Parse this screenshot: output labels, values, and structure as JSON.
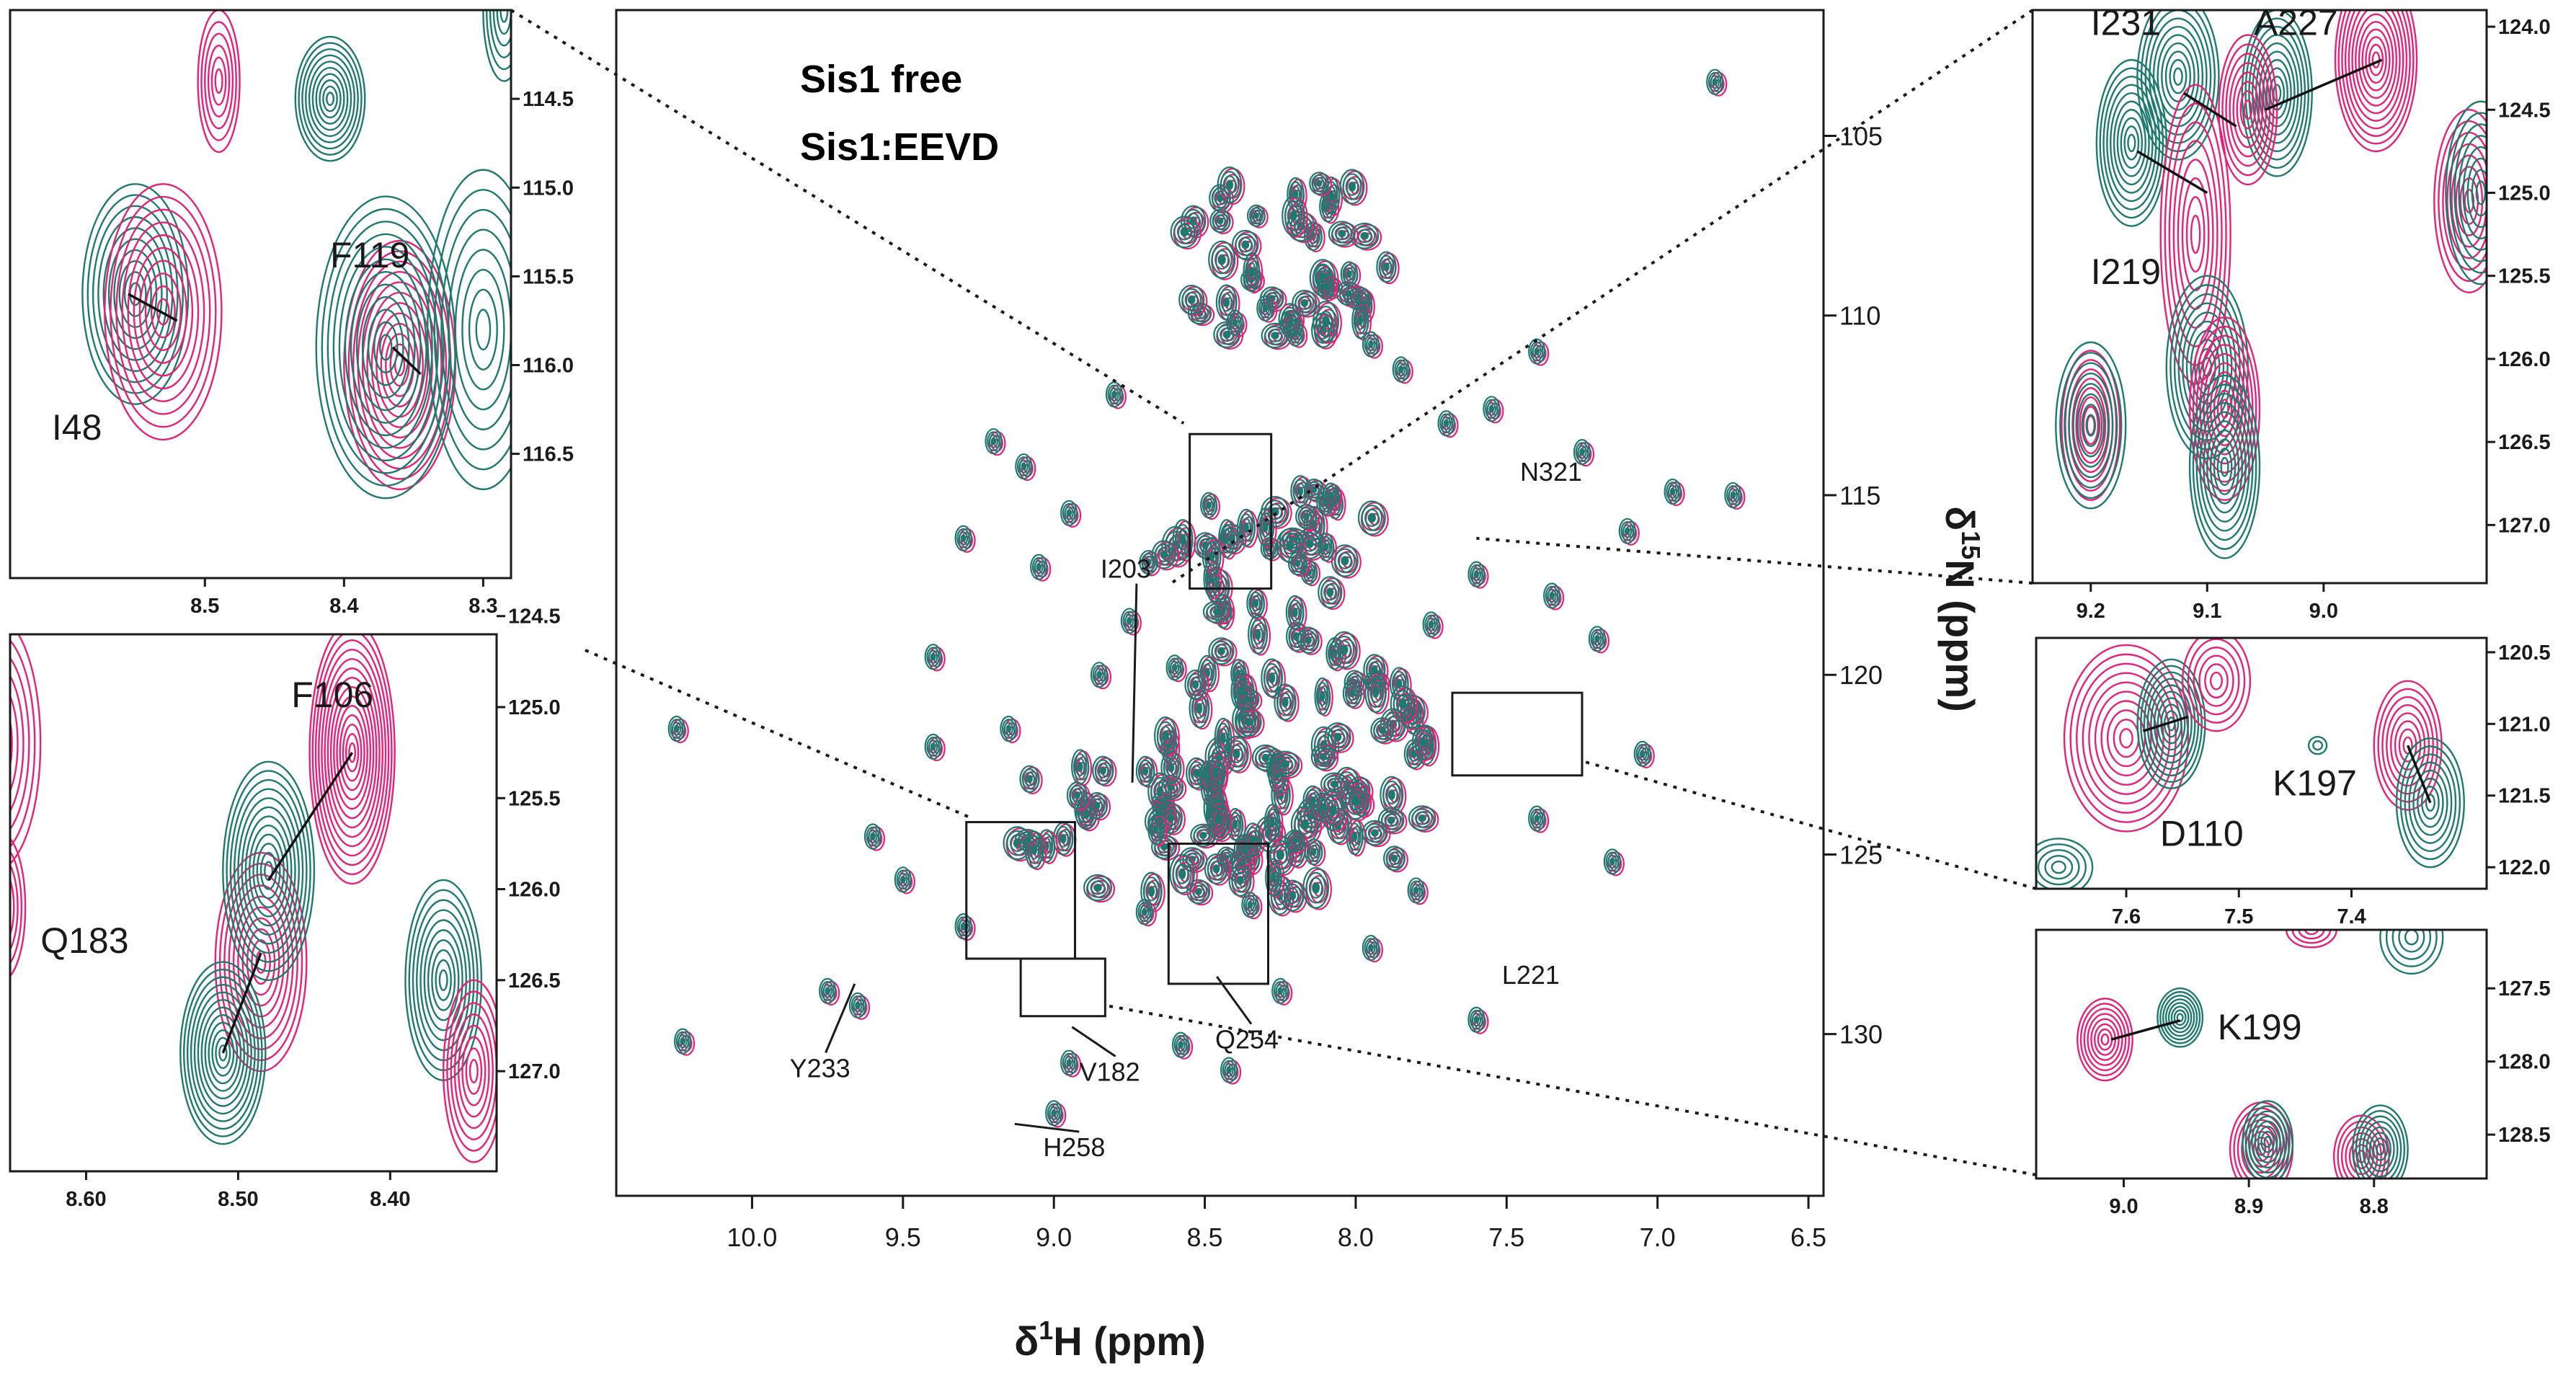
{
  "legend": {
    "free": "Sis1 free",
    "bound": "Sis1:EEVD"
  },
  "colors": {
    "free": "#e6217a",
    "bound": "#1e7a70"
  },
  "axes": {
    "xlabel_main": "H (ppm)",
    "x_delta": "δ",
    "x_sup": "1",
    "ylabel_main": "N (ppm)",
    "y_delta": "δ",
    "y_sup": "15"
  },
  "chart_data": [
    {
      "name": "main-spectrum",
      "type": "scatter",
      "x_axis": {
        "label": "δ1H (ppm)",
        "range": [
          10.45,
          6.45
        ],
        "ticks": [
          "10.0",
          "9.5",
          "9.0",
          "8.5",
          "8.0",
          "7.5",
          "7.0",
          "6.5"
        ],
        "tick_values": [
          10.0,
          9.5,
          9.0,
          8.5,
          8.0,
          7.5,
          7.0,
          6.5
        ]
      },
      "y_axis": {
        "label": "δ15N (ppm)",
        "range": [
          101.5,
          134.5
        ],
        "ticks": [
          "105",
          "110",
          "115",
          "120",
          "125",
          "130"
        ],
        "tick_values": [
          105,
          110,
          115,
          120,
          125,
          130
        ]
      },
      "labels": [
        {
          "text": "N321",
          "x": 7.36,
          "y": 114.6,
          "ax": 7.36,
          "ay": 114.6,
          "line": false
        },
        {
          "text": "I203",
          "x": 8.75,
          "y": 117.3,
          "ax": 8.74,
          "ay": 123.0,
          "line": true
        },
        {
          "text": "L221",
          "x": 7.42,
          "y": 128.6,
          "ax": 7.42,
          "ay": 128.6,
          "line": false
        },
        {
          "text": "Y233",
          "x": 9.78,
          "y": 131.2,
          "ax": 9.66,
          "ay": 128.6,
          "line": true
        },
        {
          "text": "V182",
          "x": 8.82,
          "y": 131.3,
          "ax": 8.94,
          "ay": 129.8,
          "line": true
        },
        {
          "text": "Q254",
          "x": 8.37,
          "y": 130.4,
          "ax": 8.46,
          "ay": 128.4,
          "line": true
        },
        {
          "text": "H258",
          "x": 8.94,
          "y": 133.4,
          "ax": 9.13,
          "ay": 132.5,
          "line": true
        }
      ],
      "boxes": [
        {
          "x1": 8.55,
          "x2": 8.28,
          "y1": 113.3,
          "y2": 117.6
        },
        {
          "x1": 7.68,
          "x2": 7.25,
          "y1": 120.5,
          "y2": 122.8
        },
        {
          "x1": 9.29,
          "x2": 8.93,
          "y1": 124.1,
          "y2": 127.9
        },
        {
          "x1": 8.62,
          "x2": 8.29,
          "y1": 124.7,
          "y2": 128.6
        },
        {
          "x1": 9.11,
          "x2": 8.83,
          "y1": 127.9,
          "y2": 129.5
        }
      ],
      "peaks": [
        [
          6.81,
          103.5
        ],
        [
          10.25,
          121.5
        ],
        [
          10.23,
          130.2
        ],
        [
          9.75,
          128.8
        ],
        [
          9.65,
          129.2
        ],
        [
          9.6,
          124.5
        ],
        [
          9.4,
          119.5
        ],
        [
          9.2,
          113.5
        ],
        [
          9.1,
          114.2
        ],
        [
          9.05,
          117.0
        ],
        [
          8.95,
          115.5
        ],
        [
          8.85,
          120.0
        ],
        [
          8.75,
          118.5
        ],
        [
          8.6,
          119.8
        ],
        [
          8.4,
          110.2
        ],
        [
          8.3,
          109.8
        ],
        [
          8.2,
          110.5
        ],
        [
          8.1,
          109.2
        ],
        [
          7.95,
          110.8
        ],
        [
          7.85,
          111.5
        ],
        [
          7.7,
          113.0
        ],
        [
          7.55,
          112.6
        ],
        [
          7.4,
          111.0
        ],
        [
          7.25,
          113.8
        ],
        [
          7.1,
          116.0
        ],
        [
          6.95,
          114.9
        ],
        [
          6.75,
          115.0
        ],
        [
          7.6,
          117.2
        ],
        [
          7.35,
          117.8
        ],
        [
          7.2,
          119.0
        ],
        [
          7.05,
          122.2
        ],
        [
          7.4,
          124.0
        ],
        [
          7.15,
          125.2
        ],
        [
          7.8,
          126.0
        ],
        [
          7.95,
          127.6
        ],
        [
          8.7,
          126.6
        ],
        [
          9.3,
          127.0
        ],
        [
          8.95,
          130.8
        ],
        [
          9.0,
          132.2
        ],
        [
          9.5,
          125.7
        ],
        [
          9.4,
          122.0
        ],
        [
          9.15,
          121.5
        ],
        [
          8.58,
          130.3
        ],
        [
          8.42,
          131.0
        ],
        [
          7.75,
          118.6
        ],
        [
          8.8,
          112.2
        ],
        [
          9.3,
          116.2
        ],
        [
          7.6,
          129.6
        ],
        [
          8.25,
          128.8
        ],
        [
          8.35,
          126.4
        ]
      ],
      "clusters": [
        {
          "x": 8.22,
          "y": 122.5,
          "rx": 0.48,
          "ry": 3.8,
          "n": 90
        },
        {
          "x": 8.22,
          "y": 108.5,
          "rx": 0.38,
          "ry": 2.5,
          "n": 40
        },
        {
          "x": 8.3,
          "y": 116.5,
          "rx": 0.4,
          "ry": 2.0,
          "n": 35
        },
        {
          "x": 8.7,
          "y": 124.0,
          "rx": 0.45,
          "ry": 2.5,
          "n": 30
        }
      ]
    },
    {
      "name": "inset-top-left",
      "type": "scatter",
      "x_axis": {
        "range": [
          8.64,
          8.28
        ],
        "ticks": [
          "8.5",
          "8.4",
          "8.3"
        ],
        "tick_values": [
          8.5,
          8.4,
          8.3
        ]
      },
      "y_axis": {
        "range": [
          114.0,
          117.2
        ],
        "ticks": [
          "114.5",
          "115.0",
          "115.5",
          "116.0",
          "116.5"
        ],
        "tick_values": [
          114.5,
          115.0,
          115.5,
          116.0,
          116.5
        ]
      },
      "peaks": [
        {
          "x": 8.55,
          "y": 115.6,
          "color": "bound",
          "n": 10,
          "rx": 0.038,
          "ry": 0.62
        },
        {
          "x": 8.53,
          "y": 115.7,
          "color": "free",
          "n": 10,
          "rx": 0.042,
          "ry": 0.72
        },
        {
          "x": 8.49,
          "y": 114.4,
          "color": "free",
          "n": 6,
          "rx": 0.015,
          "ry": 0.4
        },
        {
          "x": 8.41,
          "y": 114.5,
          "color": "bound",
          "n": 10,
          "rx": 0.025,
          "ry": 0.35
        },
        {
          "x": 8.36,
          "y": 116.0,
          "color": "free",
          "n": 12,
          "rx": 0.04,
          "ry": 0.7
        },
        {
          "x": 8.37,
          "y": 115.9,
          "color": "bound",
          "n": 12,
          "rx": 0.05,
          "ry": 0.85
        },
        {
          "x": 8.3,
          "y": 115.8,
          "color": "bound",
          "n": 8,
          "rx": 0.04,
          "ry": 0.9
        },
        {
          "x": 8.285,
          "y": 114.0,
          "color": "bound",
          "n": 6,
          "rx": 0.015,
          "ry": 0.4
        }
      ],
      "labels": [
        {
          "text": "F119",
          "x": 8.41,
          "y": 115.45
        },
        {
          "text": "I48",
          "x": 8.61,
          "y": 116.42
        }
      ],
      "arrows": [
        [
          8.555,
          115.6,
          8.52,
          115.75
        ],
        [
          8.365,
          115.9,
          8.345,
          116.05
        ]
      ]
    },
    {
      "name": "inset-bottom-left",
      "type": "scatter",
      "x_axis": {
        "range": [
          8.65,
          8.33
        ],
        "ticks": [
          "8.60",
          "8.50",
          "8.40"
        ],
        "tick_values": [
          8.6,
          8.5,
          8.4
        ]
      },
      "y_axis": {
        "range": [
          124.6,
          127.55
        ],
        "ticks": [
          "124.5",
          "125.0",
          "125.5",
          "126.0",
          "126.5",
          "127.0"
        ],
        "tick_values": [
          124.5,
          125.0,
          125.5,
          126.0,
          126.5,
          127.0
        ]
      },
      "peaks": [
        {
          "x": 8.425,
          "y": 125.25,
          "color": "free",
          "n": 14,
          "rx": 0.028,
          "ry": 0.72
        },
        {
          "x": 8.485,
          "y": 126.4,
          "color": "free",
          "n": 10,
          "rx": 0.03,
          "ry": 0.6
        },
        {
          "x": 8.48,
          "y": 125.9,
          "color": "bound",
          "n": 12,
          "rx": 0.03,
          "ry": 0.6
        },
        {
          "x": 8.51,
          "y": 126.9,
          "color": "bound",
          "n": 12,
          "rx": 0.028,
          "ry": 0.5
        },
        {
          "x": 8.365,
          "y": 126.5,
          "color": "bound",
          "n": 10,
          "rx": 0.025,
          "ry": 0.55
        },
        {
          "x": 8.345,
          "y": 127.0,
          "color": "free",
          "n": 8,
          "rx": 0.02,
          "ry": 0.5
        },
        {
          "x": 8.66,
          "y": 125.2,
          "color": "free",
          "n": 8,
          "rx": 0.03,
          "ry": 0.7
        },
        {
          "x": 8.655,
          "y": 126.1,
          "color": "free",
          "n": 6,
          "rx": 0.015,
          "ry": 0.4
        }
      ],
      "labels": [
        {
          "text": "F106",
          "x": 8.465,
          "y": 125.0
        },
        {
          "text": "Q183",
          "x": 8.63,
          "y": 126.35
        }
      ],
      "arrows": [
        [
          8.425,
          125.25,
          8.48,
          125.95
        ],
        [
          8.485,
          126.35,
          8.51,
          126.9
        ]
      ]
    },
    {
      "name": "inset-top-right",
      "type": "scatter",
      "x_axis": {
        "range": [
          9.25,
          8.86
        ],
        "ticks": [
          "9.2",
          "9.1",
          "9.0"
        ],
        "tick_values": [
          9.2,
          9.1,
          9.0
        ]
      },
      "y_axis": {
        "range": [
          123.9,
          127.35
        ],
        "ticks": [
          "124.0",
          "124.5",
          "125.0",
          "125.5",
          "126.0",
          "126.5",
          "127.0"
        ],
        "tick_values": [
          124.0,
          124.5,
          125.0,
          125.5,
          126.0,
          126.5,
          127.0
        ]
      },
      "peaks": [
        {
          "x": 8.955,
          "y": 124.2,
          "color": "free",
          "n": 12,
          "rx": 0.035,
          "ry": 0.55
        },
        {
          "x": 9.04,
          "y": 124.4,
          "color": "bound",
          "n": 10,
          "rx": 0.03,
          "ry": 0.5
        },
        {
          "x": 9.065,
          "y": 124.5,
          "color": "free",
          "n": 8,
          "rx": 0.025,
          "ry": 0.45
        },
        {
          "x": 9.125,
          "y": 124.3,
          "color": "bound",
          "n": 10,
          "rx": 0.035,
          "ry": 0.5
        },
        {
          "x": 9.165,
          "y": 124.7,
          "color": "bound",
          "n": 10,
          "rx": 0.03,
          "ry": 0.5
        },
        {
          "x": 9.11,
          "y": 125.25,
          "color": "free",
          "n": 8,
          "rx": 0.03,
          "ry": 0.9
        },
        {
          "x": 9.1,
          "y": 126.05,
          "color": "bound",
          "n": 10,
          "rx": 0.035,
          "ry": 0.55
        },
        {
          "x": 9.085,
          "y": 126.3,
          "color": "free",
          "n": 10,
          "rx": 0.03,
          "ry": 0.55
        },
        {
          "x": 9.085,
          "y": 126.65,
          "color": "bound",
          "n": 10,
          "rx": 0.03,
          "ry": 0.55
        },
        {
          "x": 9.2,
          "y": 126.4,
          "color": "free",
          "n": 8,
          "rx": 0.025,
          "ry": 0.45
        },
        {
          "x": 9.2,
          "y": 126.4,
          "color": "bound",
          "n": 8,
          "rx": 0.03,
          "ry": 0.5
        },
        {
          "x": 8.875,
          "y": 125.05,
          "color": "free",
          "n": 8,
          "rx": 0.03,
          "ry": 0.55
        },
        {
          "x": 8.865,
          "y": 125.0,
          "color": "bound",
          "n": 8,
          "rx": 0.03,
          "ry": 0.55
        }
      ],
      "labels": [
        {
          "text": "I231",
          "x": 9.2,
          "y": 124.05
        },
        {
          "text": "A227",
          "x": 9.06,
          "y": 124.05
        },
        {
          "text": "I219",
          "x": 9.2,
          "y": 125.55
        }
      ],
      "arrows": [
        [
          9.12,
          124.4,
          9.075,
          124.6
        ],
        [
          9.05,
          124.5,
          8.95,
          124.2
        ],
        [
          9.16,
          124.75,
          9.1,
          125.0
        ]
      ]
    },
    {
      "name": "inset-mid-right",
      "type": "scatter",
      "x_axis": {
        "range": [
          7.68,
          7.28
        ],
        "ticks": [
          "7.6",
          "7.5",
          "7.4"
        ],
        "tick_values": [
          7.6,
          7.5,
          7.4
        ]
      },
      "y_axis": {
        "range": [
          120.4,
          122.15
        ],
        "ticks": [
          "120.5",
          "121.0",
          "121.5",
          "122.0"
        ],
        "tick_values": [
          120.5,
          121.0,
          121.5,
          122.0
        ]
      },
      "peaks": [
        {
          "x": 7.6,
          "y": 121.1,
          "color": "free",
          "n": 10,
          "rx": 0.055,
          "ry": 0.65
        },
        {
          "x": 7.56,
          "y": 121.0,
          "color": "bound",
          "n": 10,
          "rx": 0.03,
          "ry": 0.45
        },
        {
          "x": 7.52,
          "y": 120.7,
          "color": "free",
          "n": 6,
          "rx": 0.03,
          "ry": 0.35
        },
        {
          "x": 7.35,
          "y": 121.15,
          "color": "free",
          "n": 8,
          "rx": 0.03,
          "ry": 0.45
        },
        {
          "x": 7.33,
          "y": 121.55,
          "color": "bound",
          "n": 8,
          "rx": 0.03,
          "ry": 0.45
        },
        {
          "x": 7.43,
          "y": 121.15,
          "color": "bound",
          "n": 2,
          "rx": 0.008,
          "ry": 0.06
        },
        {
          "x": 7.66,
          "y": 122.0,
          "color": "bound",
          "n": 5,
          "rx": 0.03,
          "ry": 0.2
        }
      ],
      "labels": [
        {
          "text": "D110",
          "x": 7.57,
          "y": 121.85
        },
        {
          "text": "K197",
          "x": 7.47,
          "y": 121.5
        }
      ],
      "arrows": [
        [
          7.585,
          121.05,
          7.545,
          120.95
        ],
        [
          7.35,
          121.15,
          7.33,
          121.55
        ]
      ]
    },
    {
      "name": "inset-bottom-right",
      "type": "scatter",
      "x_axis": {
        "range": [
          9.07,
          8.71
        ],
        "ticks": [
          "9.0",
          "8.9",
          "8.8"
        ],
        "tick_values": [
          9.0,
          8.9,
          8.8
        ]
      },
      "y_axis": {
        "range": [
          127.1,
          128.8
        ],
        "ticks": [
          "127.5",
          "128.0",
          "128.5"
        ],
        "tick_values": [
          127.5,
          128.0,
          128.5
        ]
      },
      "peaks": [
        {
          "x": 9.015,
          "y": 127.85,
          "color": "free",
          "n": 8,
          "rx": 0.022,
          "ry": 0.28
        },
        {
          "x": 8.955,
          "y": 127.7,
          "color": "bound",
          "n": 8,
          "rx": 0.018,
          "ry": 0.2
        },
        {
          "x": 8.89,
          "y": 128.6,
          "color": "free",
          "n": 8,
          "rx": 0.025,
          "ry": 0.32
        },
        {
          "x": 8.885,
          "y": 128.55,
          "color": "bound",
          "n": 8,
          "rx": 0.02,
          "ry": 0.28
        },
        {
          "x": 8.81,
          "y": 128.65,
          "color": "free",
          "n": 7,
          "rx": 0.022,
          "ry": 0.28
        },
        {
          "x": 8.795,
          "y": 128.6,
          "color": "bound",
          "n": 8,
          "rx": 0.022,
          "ry": 0.3
        },
        {
          "x": 8.85,
          "y": 127.1,
          "color": "free",
          "n": 4,
          "rx": 0.02,
          "ry": 0.12
        },
        {
          "x": 8.77,
          "y": 127.15,
          "color": "bound",
          "n": 5,
          "rx": 0.025,
          "ry": 0.25
        }
      ],
      "labels": [
        {
          "text": "K199",
          "x": 8.925,
          "y": 127.85
        }
      ],
      "arrows": [
        [
          9.01,
          127.85,
          8.955,
          127.72
        ]
      ]
    }
  ]
}
